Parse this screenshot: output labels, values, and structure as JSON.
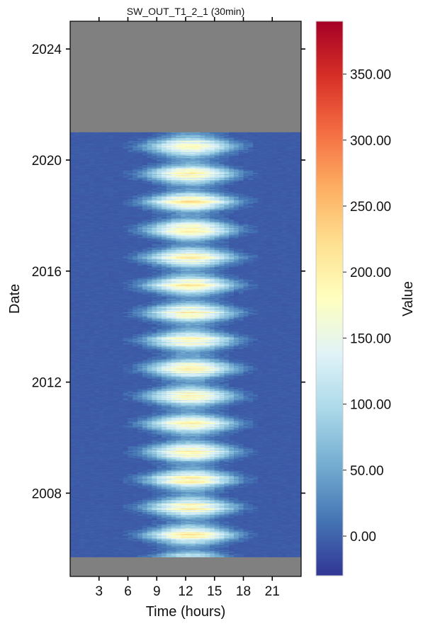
{
  "chart_data": {
    "type": "heatmap",
    "title": "SW_OUT_T1_2_1 (30min)",
    "xlabel": "Time (hours)",
    "ylabel": "Date",
    "colorbar_label": "Value",
    "xlim": [
      0,
      24
    ],
    "ylim": [
      2005.0,
      2025.0
    ],
    "x_ticks": [
      3,
      6,
      9,
      12,
      15,
      18,
      21
    ],
    "x_tick_labels": [
      "3",
      "6",
      "9",
      "12",
      "15",
      "18",
      "21"
    ],
    "y_ticks": [
      2008,
      2012,
      2016,
      2020,
      2024
    ],
    "y_tick_labels": [
      "2008",
      "2012",
      "2016",
      "2020",
      "2024"
    ],
    "colorbar_range": [
      -30,
      390
    ],
    "colorbar_ticks": [
      0,
      50,
      100,
      150,
      200,
      250,
      300,
      350
    ],
    "colorbar_tick_labels": [
      "0.00",
      "50.00",
      "100.00",
      "150.00",
      "200.00",
      "250.00",
      "300.00",
      "350.00"
    ],
    "colormap": "RdYlBu_r",
    "colormap_stops": [
      "#313695",
      "#4575b4",
      "#74add1",
      "#abd9e9",
      "#e0f3f8",
      "#ffffbf",
      "#fee090",
      "#fdae61",
      "#f46d43",
      "#d73027",
      "#a50026"
    ],
    "data_start_year": 2005.7,
    "data_end_year": 2021.0,
    "no_data_color": "#808080",
    "pattern": "Near-zero values overnight; daytime peak of ~150–200 around 12h, widest (about 5h–19h) each summer and narrowest (about 8h–16h) each winter.",
    "summer_peak_value": 190,
    "winter_peak_value": 40
  }
}
